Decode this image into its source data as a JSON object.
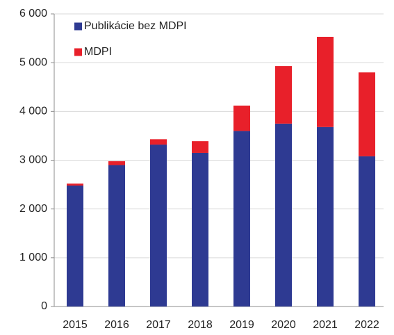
{
  "chart_data": {
    "type": "stacked_bar",
    "categories": [
      "2015",
      "2016",
      "2017",
      "2018",
      "2019",
      "2020",
      "2021",
      "2022"
    ],
    "series": [
      {
        "name": "Publikácie bez MDPI",
        "color": "#2e3a92",
        "values": [
          2480,
          2900,
          3320,
          3150,
          3600,
          3750,
          3680,
          3080
        ]
      },
      {
        "name": "MDPI",
        "color": "#e8202a",
        "values": [
          40,
          80,
          110,
          240,
          520,
          1180,
          1850,
          1720
        ]
      }
    ],
    "ylim": [
      0,
      6000
    ],
    "yticks": [
      {
        "value": 0,
        "label": "0"
      },
      {
        "value": 1000,
        "label": "1 000"
      },
      {
        "value": 2000,
        "label": "2 000"
      },
      {
        "value": 3000,
        "label": "3 000"
      },
      {
        "value": 4000,
        "label": "4 000"
      },
      {
        "value": 5000,
        "label": "5 000"
      },
      {
        "value": 6000,
        "label": "6 000"
      }
    ],
    "grid": true
  }
}
